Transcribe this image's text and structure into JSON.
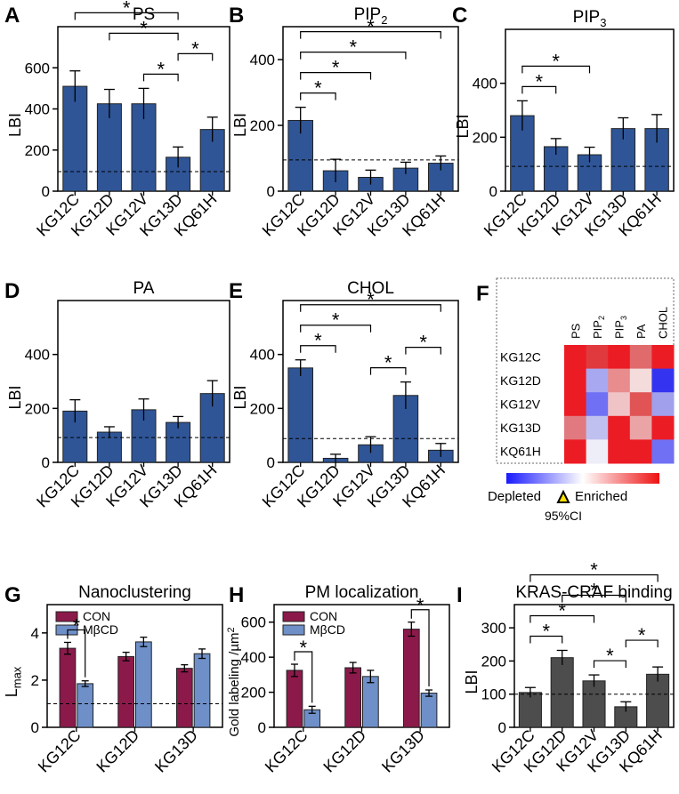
{
  "chart_data": [
    {
      "panel": "A",
      "title": "PS",
      "type": "bar",
      "ylabel": "LBI",
      "categories": [
        "KG12C",
        "KG12D",
        "KG12V",
        "KG13D",
        "KQ61H"
      ],
      "values": [
        510,
        425,
        425,
        165,
        300
      ],
      "errors": [
        75,
        70,
        75,
        50,
        60
      ],
      "ylim": [
        0,
        800
      ],
      "yticks": [
        0,
        200,
        400,
        600
      ],
      "reference_line": 95,
      "color": "#2f5597",
      "significance": [
        {
          "from": 0,
          "to": 3,
          "label": "*"
        },
        {
          "from": 1,
          "to": 3,
          "label": "*"
        },
        {
          "from": 2,
          "to": 3,
          "label": "*"
        },
        {
          "from": 3,
          "to": 4,
          "label": "*"
        }
      ]
    },
    {
      "panel": "B",
      "title": "PIP",
      "title_sub": "2",
      "type": "bar",
      "ylabel": "LBI",
      "categories": [
        "KG12C",
        "KG12D",
        "KG12V",
        "KG13D",
        "KQ61H"
      ],
      "values": [
        215,
        62,
        42,
        70,
        85
      ],
      "errors": [
        40,
        35,
        22,
        18,
        22
      ],
      "ylim": [
        0,
        500
      ],
      "yticks": [
        0,
        200,
        400
      ],
      "reference_line": 95,
      "color": "#2f5597",
      "significance": [
        {
          "from": 0,
          "to": 1,
          "label": "*"
        },
        {
          "from": 0,
          "to": 2,
          "label": "*"
        },
        {
          "from": 0,
          "to": 3,
          "label": "*"
        },
        {
          "from": 0,
          "to": 4,
          "label": "*"
        }
      ]
    },
    {
      "panel": "C",
      "title": "PIP",
      "title_sub": "3",
      "type": "bar",
      "ylabel": "LBI",
      "categories": [
        "KG12C",
        "KG12D",
        "KG12V",
        "KG13D",
        "KQ61H"
      ],
      "values": [
        280,
        165,
        135,
        232,
        232
      ],
      "errors": [
        55,
        30,
        28,
        40,
        52
      ],
      "ylim": [
        0,
        600
      ],
      "yticks": [
        0,
        200,
        400
      ],
      "reference_line": 92,
      "color": "#2f5597",
      "significance": [
        {
          "from": 0,
          "to": 1,
          "label": "*"
        },
        {
          "from": 0,
          "to": 2,
          "label": "*"
        }
      ]
    },
    {
      "panel": "D",
      "title": "PA",
      "type": "bar",
      "ylabel": "LBI",
      "categories": [
        "KG12C",
        "KG12D",
        "KG12V",
        "KG13D",
        "KQ61H"
      ],
      "values": [
        190,
        112,
        195,
        148,
        255
      ],
      "errors": [
        42,
        20,
        40,
        22,
        48
      ],
      "ylim": [
        0,
        600
      ],
      "yticks": [
        0,
        200,
        400
      ],
      "reference_line": 92,
      "color": "#2f5597",
      "significance": []
    },
    {
      "panel": "E",
      "title": "CHOL",
      "type": "bar",
      "ylabel": "LBI",
      "categories": [
        "KG12C",
        "KG12D",
        "KG12V",
        "KG13D",
        "KQ61H"
      ],
      "values": [
        350,
        15,
        65,
        248,
        45
      ],
      "errors": [
        30,
        15,
        30,
        50,
        25
      ],
      "ylim": [
        0,
        600
      ],
      "yticks": [
        0,
        200,
        400
      ],
      "reference_line": 88,
      "color": "#2f5597",
      "significance": [
        {
          "from": 0,
          "to": 1,
          "label": "*"
        },
        {
          "from": 0,
          "to": 2,
          "label": "*"
        },
        {
          "from": 0,
          "to": 4,
          "label": "*"
        },
        {
          "from": 2,
          "to": 3,
          "label": "*"
        },
        {
          "from": 3,
          "to": 4,
          "label": "*"
        }
      ]
    },
    {
      "panel": "F",
      "type": "heatmap",
      "columns": [
        {
          "label": "PS",
          "sub": ""
        },
        {
          "label": "PIP",
          "sub": "2"
        },
        {
          "label": "PIP",
          "sub": "3"
        },
        {
          "label": "PA",
          "sub": ""
        },
        {
          "label": "CHOL",
          "sub": ""
        }
      ],
      "rows": [
        "KG12C",
        "KG12D",
        "KG12V",
        "KG13D",
        "KQ61H"
      ],
      "cell_colors": [
        [
          "#ec1c24",
          "#e03a3e",
          "#ec1c24",
          "#e06a6c",
          "#ec1c24"
        ],
        [
          "#ec1c24",
          "#a8a8f0",
          "#e88c8e",
          "#f4dcdc",
          "#3434f0"
        ],
        [
          "#ec1c24",
          "#7070f4",
          "#f0c4c6",
          "#e05456",
          "#a0a0ec"
        ],
        [
          "#e07a80",
          "#c0c0f0",
          "#ec1c24",
          "#eaa4a6",
          "#ec1c24"
        ],
        [
          "#ec1c24",
          "#eeeef8",
          "#ec1c24",
          "#ec1c24",
          "#7070f4"
        ]
      ],
      "legend": {
        "low": "Depleted",
        "high": "Enriched",
        "ci": "95%CI"
      }
    },
    {
      "panel": "G",
      "title": "Nanoclustering",
      "type": "bar",
      "ylabel": "L",
      "ylabel_sub": "max",
      "categories": [
        "KG12C",
        "KG12D",
        "KG13D"
      ],
      "series": [
        {
          "name": "CON",
          "values": [
            3.35,
            3.0,
            2.5
          ],
          "errors": [
            0.25,
            0.18,
            0.15
          ],
          "color": "#8b1a4a"
        },
        {
          "name": "MβCD",
          "values": [
            1.85,
            3.62,
            3.12
          ],
          "errors": [
            0.12,
            0.2,
            0.2
          ],
          "color": "#6e8fc7"
        }
      ],
      "ylim": [
        0,
        5.2
      ],
      "yticks": [
        0,
        2,
        4
      ],
      "reference_line": 1,
      "significance": [
        {
          "group": 0,
          "label": "*"
        }
      ]
    },
    {
      "panel": "H",
      "title": "PM localization",
      "type": "bar",
      "ylabel": "Gold labeling /µm",
      "ylabel_sup": "2",
      "categories": [
        "KG12C",
        "KG12D",
        "KG13D"
      ],
      "series": [
        {
          "name": "CON",
          "values": [
            325,
            340,
            560
          ],
          "errors": [
            35,
            30,
            40
          ],
          "color": "#8b1a4a"
        },
        {
          "name": "MβCD",
          "values": [
            100,
            290,
            195
          ],
          "errors": [
            20,
            35,
            18
          ],
          "color": "#6e8fc7"
        }
      ],
      "ylim": [
        0,
        700
      ],
      "yticks": [
        0,
        200,
        400,
        600
      ],
      "significance": [
        {
          "group": 0,
          "label": "*"
        },
        {
          "group": 2,
          "label": "*"
        }
      ]
    },
    {
      "panel": "I",
      "title": "KRAS-CRAF binding",
      "type": "bar",
      "ylabel": "LBI",
      "categories": [
        "KG12C",
        "KG12D",
        "KG12V",
        "KG13D",
        "KQ61H"
      ],
      "values": [
        105,
        210,
        140,
        62,
        160
      ],
      "errors": [
        15,
        22,
        18,
        15,
        22
      ],
      "ylim": [
        0,
        370
      ],
      "yticks": [
        0,
        100,
        200,
        300
      ],
      "reference_line": 100,
      "color": "#4d4d4d",
      "significance": [
        {
          "from": 0,
          "to": 1,
          "label": "*"
        },
        {
          "from": 0,
          "to": 2,
          "label": "*"
        },
        {
          "from": 0,
          "to": 4,
          "label": "*"
        },
        {
          "from": 1,
          "to": 3,
          "label": "*"
        },
        {
          "from": 2,
          "to": 3,
          "label": "*"
        },
        {
          "from": 3,
          "to": 4,
          "label": "*"
        }
      ]
    }
  ]
}
